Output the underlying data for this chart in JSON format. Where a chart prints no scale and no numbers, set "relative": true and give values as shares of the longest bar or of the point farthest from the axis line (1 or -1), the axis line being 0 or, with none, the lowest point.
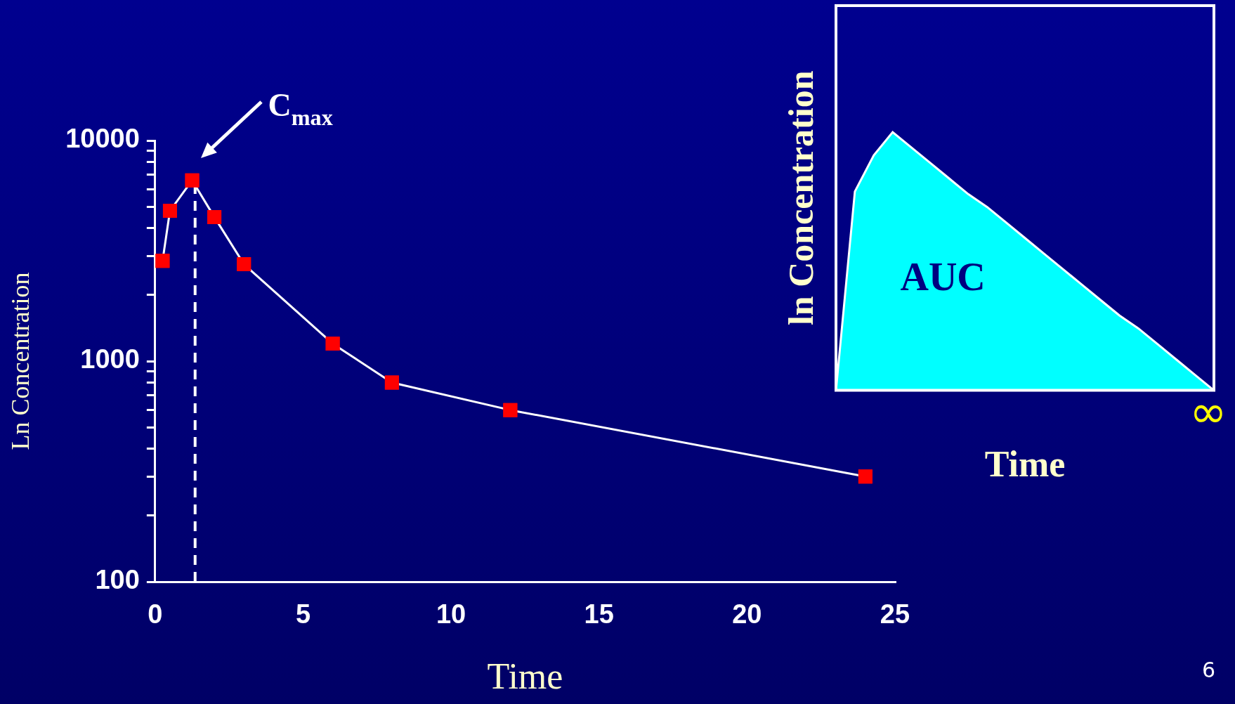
{
  "chart_data": [
    {
      "type": "line",
      "xlabel": "Time",
      "ylabel": "Ln Concentration",
      "x": [
        0.25,
        0.5,
        1.25,
        2,
        3,
        6,
        8,
        12,
        24
      ],
      "values": [
        2850,
        4800,
        6600,
        4500,
        2750,
        1200,
        800,
        600,
        300
      ],
      "color": "#ff0000",
      "marker": "square",
      "log": "y",
      "xlim": [
        0,
        25
      ],
      "xticks": [
        0,
        5,
        10,
        15,
        20,
        25
      ],
      "ylim": [
        100,
        10000
      ],
      "yticks": [
        100,
        {
          "value": 200,
          "label": null
        },
        {
          "value": 300,
          "label": null
        },
        {
          "value": 400,
          "label": null
        },
        {
          "value": 500,
          "label": null
        },
        {
          "value": 600,
          "label": null
        },
        {
          "value": 700,
          "label": null
        },
        {
          "value": 800,
          "label": null
        },
        {
          "value": 900,
          "label": null
        },
        1000,
        {
          "value": 2000,
          "label": null
        },
        {
          "value": 3000,
          "label": null
        },
        {
          "value": 4000,
          "label": null
        },
        {
          "value": 5000,
          "label": null
        },
        {
          "value": 6000,
          "label": null
        },
        {
          "value": 7000,
          "label": null
        },
        {
          "value": 8000,
          "label": null
        },
        {
          "value": 9000,
          "label": null
        },
        10000
      ],
      "ref_lines": [
        {
          "axis": "x",
          "value": 1.35,
          "line_style": "dashed",
          "color": "#ffffff"
        }
      ],
      "annotations": [
        {
          "text": "C$_{max}$",
          "x": 1.25,
          "y": 6600
        },
        "6"
      ]
    },
    {
      "type": "area",
      "relative": true,
      "xlabel": "Time",
      "ylabel": "ln Concentration",
      "categories": [
        null,
        null,
        null,
        null,
        null,
        null,
        null,
        null,
        null,
        null,
        null,
        null,
        null,
        null,
        null,
        null,
        null,
        null,
        null,
        null,
        null
      ],
      "values": [
        0,
        0.77,
        0.91,
        1,
        0.94,
        0.88,
        0.82,
        0.76,
        0.71,
        0.65,
        0.59,
        0.53,
        0.47,
        0.41,
        0.35,
        0.29,
        0.24,
        0.18,
        0.12,
        0.06,
        0
      ],
      "color": "#00ffff",
      "annotations": [
        "AUC",
        "∞"
      ]
    }
  ]
}
